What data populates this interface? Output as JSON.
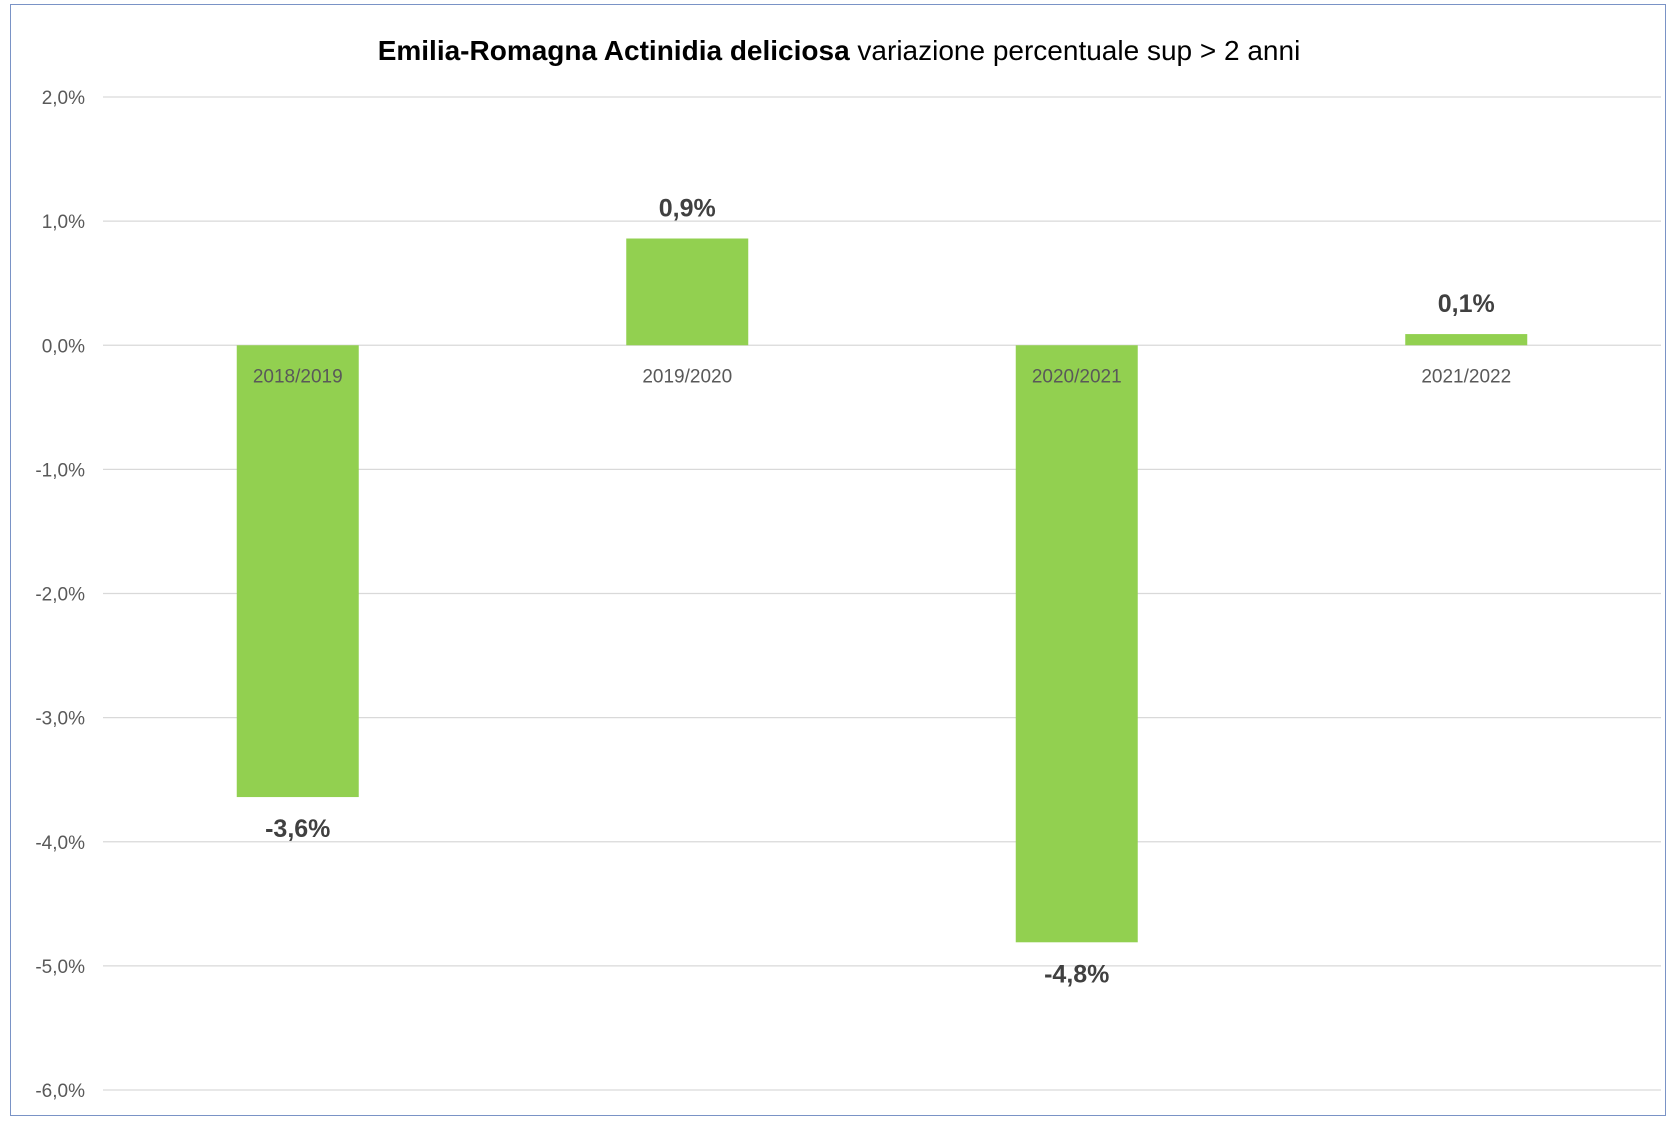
{
  "chart_data": {
    "type": "bar",
    "title_bold": "Emilia-Romagna Actinidia deliciosa",
    "title_rest": " variazione percentuale sup > 2 anni",
    "categories": [
      "2018/2019",
      "2019/2020",
      "2020/2021",
      "2021/2022"
    ],
    "values": [
      -3.64,
      0.86,
      -4.81,
      0.09
    ],
    "data_labels": [
      "-3,6%",
      "0,9%",
      "-4,8%",
      "0,1%"
    ],
    "ylim": [
      -6.0,
      2.0
    ],
    "yticks": [
      2.0,
      1.0,
      0.0,
      -1.0,
      -2.0,
      -3.0,
      -4.0,
      -5.0,
      -6.0
    ],
    "ytick_labels": [
      "2,0%",
      "1,0%",
      "0,0%",
      "-1,0%",
      "-2,0%",
      "-3,0%",
      "-4,0%",
      "-5,0%",
      "-6,0%"
    ],
    "grid": true,
    "bar_color": "#92d050",
    "grid_color": "#d9d9d9",
    "xlabel": "",
    "ylabel": ""
  }
}
